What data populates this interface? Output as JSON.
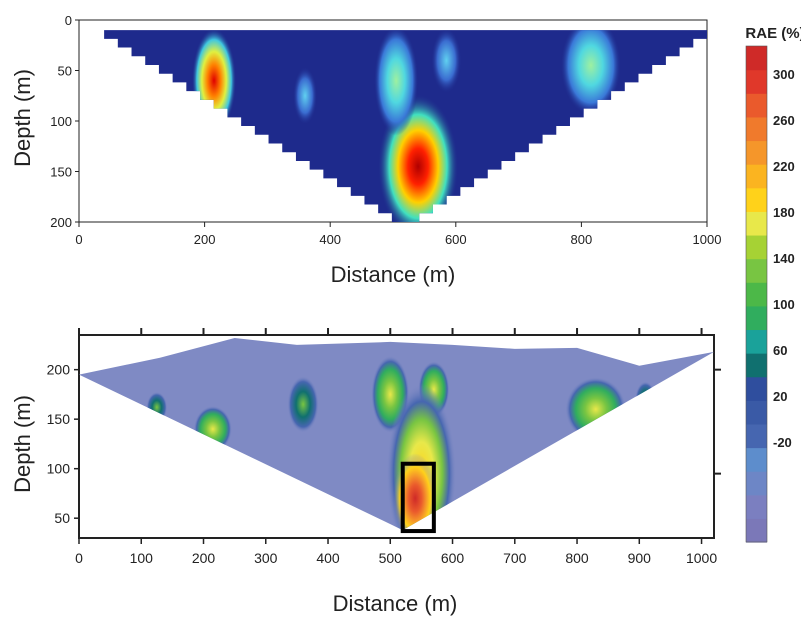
{
  "colors": {
    "background": "#ffffff",
    "frame": "#222222",
    "top_section_base": "#1e2a8c",
    "bottom_section_base": "#7f8ac4",
    "anomaly_box": "#000000"
  },
  "colorbar": {
    "title": "RAE (%)",
    "ticks": [
      "300",
      "260",
      "220",
      "180",
      "140",
      "100",
      "60",
      "20",
      "-20"
    ],
    "colors": [
      "#7b78b8",
      "#7b7fc0",
      "#6d86c6",
      "#5d8dcc",
      "#4666b0",
      "#3a5aa6",
      "#2f4e9e",
      "#10706f",
      "#1aa29a",
      "#30ad5e",
      "#4cb848",
      "#78c542",
      "#a6d234",
      "#e8e84a",
      "#ffd21a",
      "#fbb420",
      "#f5962a",
      "#f07a2c",
      "#ea5a2c",
      "#e0382a",
      "#cf2a28"
    ]
  },
  "chart_data": [
    {
      "type": "heatmap",
      "title": "",
      "xlabel": "Distance (m)",
      "ylabel": "Depth (m)",
      "xlim": [
        0,
        1000
      ],
      "ylim": [
        200,
        0
      ],
      "x_ticks": [
        0,
        200,
        400,
        600,
        800,
        1000
      ],
      "y_ticks": [
        0,
        50,
        100,
        150,
        200
      ],
      "x_tick_labels": [
        "0",
        "200",
        "400",
        "600",
        "800",
        "1000"
      ],
      "y_tick_labels": [
        "0",
        "50",
        "100",
        "150",
        "200"
      ],
      "section_outline": [
        [
          40,
          10
        ],
        [
          520,
          200
        ],
        [
          1000,
          10
        ]
      ],
      "anomalies": [
        {
          "x": 215,
          "depth": 60,
          "rx": 22,
          "ry": 40,
          "level": "high"
        },
        {
          "x": 540,
          "depth": 145,
          "rx": 40,
          "ry": 55,
          "level": "very-high"
        },
        {
          "x": 505,
          "depth": 60,
          "rx": 22,
          "ry": 42,
          "level": "medium"
        },
        {
          "x": 815,
          "depth": 45,
          "rx": 30,
          "ry": 38,
          "level": "medium"
        },
        {
          "x": 360,
          "depth": 75,
          "rx": 12,
          "ry": 22,
          "level": "low"
        },
        {
          "x": 585,
          "depth": 40,
          "rx": 15,
          "ry": 25,
          "level": "low"
        }
      ]
    },
    {
      "type": "heatmap",
      "title": "",
      "xlabel": "Distance (m)",
      "ylabel": "Depth (m)",
      "xlim": [
        0,
        1020
      ],
      "ylim": [
        30,
        235
      ],
      "x_ticks": [
        0,
        100,
        200,
        300,
        400,
        500,
        600,
        700,
        800,
        900,
        1000
      ],
      "y_ticks": [
        50,
        100,
        150,
        200
      ],
      "x_tick_labels": [
        "0",
        "100",
        "200",
        "300",
        "400",
        "500",
        "600",
        "700",
        "800",
        "900",
        "1000"
      ],
      "y_tick_labels": [
        "50",
        "100",
        "150",
        "200"
      ],
      "section_outline": [
        [
          0,
          195
        ],
        [
          130,
          212
        ],
        [
          250,
          232
        ],
        [
          350,
          225
        ],
        [
          500,
          228
        ],
        [
          600,
          225
        ],
        [
          700,
          221
        ],
        [
          800,
          222
        ],
        [
          900,
          204
        ],
        [
          1020,
          218
        ],
        [
          520,
          38
        ]
      ],
      "anomalies": [
        {
          "x": 125,
          "elevation": 162,
          "rx": 12,
          "ry": 12,
          "level": "low"
        },
        {
          "x": 215,
          "elevation": 140,
          "rx": 22,
          "ry": 18,
          "level": "medium"
        },
        {
          "x": 360,
          "elevation": 165,
          "rx": 18,
          "ry": 22,
          "level": "low"
        },
        {
          "x": 500,
          "elevation": 175,
          "rx": 22,
          "ry": 30,
          "level": "medium"
        },
        {
          "x": 570,
          "elevation": 180,
          "rx": 18,
          "ry": 22,
          "level": "medium"
        },
        {
          "x": 550,
          "elevation": 95,
          "rx": 40,
          "ry": 70,
          "level": "high"
        },
        {
          "x": 540,
          "elevation": 70,
          "rx": 25,
          "ry": 35,
          "level": "very-high"
        },
        {
          "x": 830,
          "elevation": 160,
          "rx": 35,
          "ry": 25,
          "level": "medium"
        },
        {
          "x": 910,
          "elevation": 170,
          "rx": 12,
          "ry": 14,
          "level": "low"
        }
      ],
      "highlight_box": {
        "x0": 520,
        "x1": 570,
        "depth_low": 37,
        "depth_high": 105
      }
    }
  ]
}
